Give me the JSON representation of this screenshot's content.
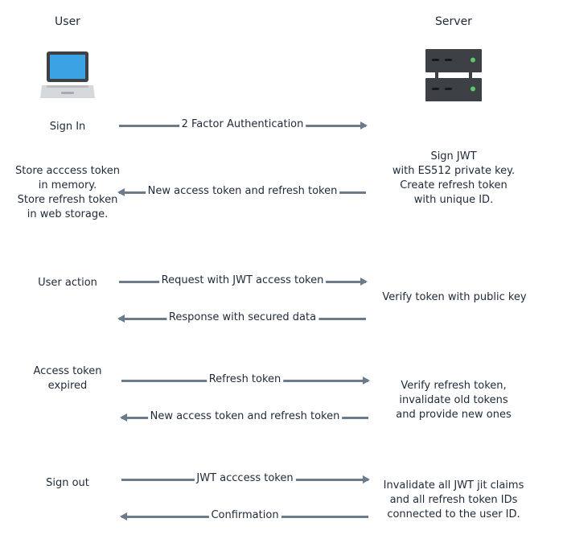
{
  "headers": {
    "user": "User",
    "server": "Server"
  },
  "icons": {
    "user": "laptop-icon",
    "server": "server-icon"
  },
  "colors": {
    "arrow": "#6b7b8c",
    "laptop_screen": "#3ba3e3",
    "server_body": "#3d4044",
    "server_led": "#5cc86a"
  },
  "steps": [
    {
      "user_text": [
        "Sign In"
      ],
      "arrows": [
        {
          "direction": "right",
          "label": "2 Factor Authentication"
        }
      ],
      "server_text": []
    },
    {
      "user_text": [
        "Store acccess token",
        "in memory.",
        "Store refresh token",
        "in web storage."
      ],
      "arrows": [
        {
          "direction": "left",
          "label": "New access token and refresh token"
        }
      ],
      "server_text": [
        "Sign JWT",
        "with ES512 private key.",
        "Create refresh token",
        "with unique ID."
      ]
    },
    {
      "user_text": [
        "User action"
      ],
      "arrows": [
        {
          "direction": "right",
          "label": "Request with JWT access token"
        },
        {
          "direction": "left",
          "label": "Response with secured data"
        }
      ],
      "server_text": [
        "Verify token with public key"
      ]
    },
    {
      "user_text": [
        "Access token",
        "expired"
      ],
      "arrows": [
        {
          "direction": "right",
          "label": "Refresh token"
        },
        {
          "direction": "left",
          "label": "New access token and refresh token"
        }
      ],
      "server_text": [
        "Verify refresh token,",
        "invalidate old tokens",
        "and provide new ones"
      ]
    },
    {
      "user_text": [
        "Sign out"
      ],
      "arrows": [
        {
          "direction": "right",
          "label": "JWT acccess token"
        },
        {
          "direction": "left",
          "label": "Confirmation"
        }
      ],
      "server_text": [
        "Invalidate all JWT jit claims",
        "and all refresh token IDs",
        "connected to the user ID."
      ]
    }
  ]
}
